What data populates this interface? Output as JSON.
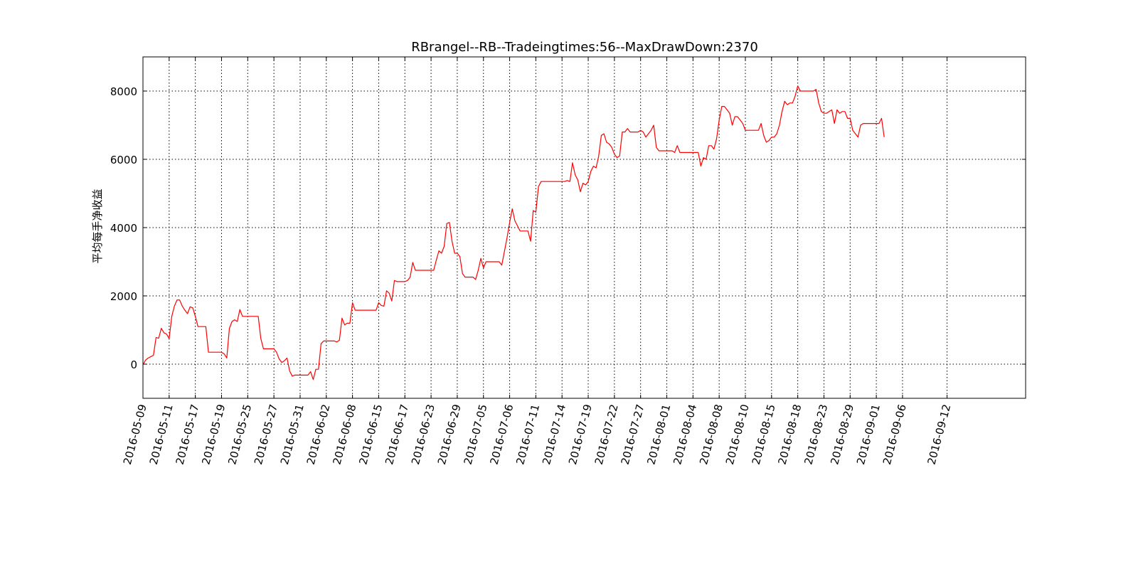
{
  "chart_data": {
    "type": "line",
    "title": "RBrangel--RB--Tradeingtimes:56--MaxDrawDown:2370",
    "xlabel": "",
    "ylabel": "平均每手净收益",
    "ylim": [
      -1000,
      9000
    ],
    "yticks": [
      0,
      2000,
      4000,
      6000,
      8000
    ],
    "grid": true,
    "line_color": "#ff0000",
    "xtick_labels": [
      "2016-05-09",
      "2016-05-11",
      "2016-05-17",
      "2016-05-19",
      "2016-05-25",
      "2016-05-27",
      "2016-05-31",
      "2016-06-02",
      "2016-06-08",
      "2016-06-15",
      "2016-06-17",
      "2016-06-23",
      "2016-06-29",
      "2016-07-05",
      "2016-07-06",
      "2016-07-11",
      "2016-07-14",
      "2016-07-19",
      "2016-07-22",
      "2016-07-27",
      "2016-08-01",
      "2016-08-04",
      "2016-08-08",
      "2016-08-10",
      "2016-08-15",
      "2016-08-18",
      "2016-08-23",
      "2016-08-29",
      "2016-09-01",
      "2016-09-06",
      "2016-09-12"
    ],
    "xtick_positions": [
      0,
      10,
      20,
      30,
      40,
      50,
      60,
      70,
      80,
      90,
      100,
      110,
      120,
      130,
      140,
      150,
      160,
      170,
      180,
      190,
      200,
      210,
      220,
      230,
      240,
      250,
      260,
      270,
      280,
      290,
      307
    ],
    "xlim": [
      0,
      337
    ],
    "series": [
      {
        "values": [
          [
            0,
            -20
          ],
          [
            1,
            120
          ],
          [
            2,
            180
          ],
          [
            3,
            220
          ],
          [
            4,
            260
          ],
          [
            5,
            780
          ],
          [
            6,
            760
          ],
          [
            7,
            1050
          ],
          [
            8,
            920
          ],
          [
            9,
            880
          ],
          [
            10,
            750
          ],
          [
            11,
            1400
          ],
          [
            12,
            1700
          ],
          [
            13,
            1880
          ],
          [
            14,
            1880
          ],
          [
            15,
            1700
          ],
          [
            16,
            1580
          ],
          [
            17,
            1480
          ],
          [
            18,
            1680
          ],
          [
            19,
            1650
          ],
          [
            20,
            1400
          ],
          [
            21,
            1100
          ],
          [
            22,
            1100
          ],
          [
            23,
            1100
          ],
          [
            24,
            1100
          ],
          [
            25,
            350
          ],
          [
            26,
            350
          ],
          [
            27,
            350
          ],
          [
            28,
            350
          ],
          [
            29,
            350
          ],
          [
            30,
            350
          ],
          [
            31,
            300
          ],
          [
            32,
            180
          ],
          [
            33,
            1050
          ],
          [
            34,
            1250
          ],
          [
            35,
            1300
          ],
          [
            36,
            1250
          ],
          [
            37,
            1600
          ],
          [
            38,
            1400
          ],
          [
            39,
            1400
          ],
          [
            40,
            1400
          ],
          [
            41,
            1400
          ],
          [
            42,
            1400
          ],
          [
            43,
            1400
          ],
          [
            44,
            1400
          ],
          [
            45,
            750
          ],
          [
            46,
            450
          ],
          [
            47,
            450
          ],
          [
            48,
            450
          ],
          [
            49,
            450
          ],
          [
            50,
            450
          ],
          [
            51,
            350
          ],
          [
            52,
            150
          ],
          [
            53,
            50
          ],
          [
            54,
            100
          ],
          [
            55,
            180
          ],
          [
            56,
            -200
          ],
          [
            57,
            -350
          ],
          [
            58,
            -320
          ],
          [
            59,
            -320
          ],
          [
            60,
            -320
          ],
          [
            61,
            -320
          ],
          [
            62,
            -320
          ],
          [
            63,
            -320
          ],
          [
            64,
            -220
          ],
          [
            65,
            -450
          ],
          [
            66,
            -150
          ],
          [
            67,
            -150
          ],
          [
            68,
            600
          ],
          [
            69,
            680
          ],
          [
            70,
            680
          ],
          [
            71,
            680
          ],
          [
            72,
            680
          ],
          [
            73,
            680
          ],
          [
            74,
            650
          ],
          [
            75,
            700
          ],
          [
            76,
            1350
          ],
          [
            77,
            1150
          ],
          [
            78,
            1200
          ],
          [
            79,
            1200
          ],
          [
            80,
            1800
          ],
          [
            81,
            1580
          ],
          [
            82,
            1580
          ],
          [
            83,
            1580
          ],
          [
            84,
            1580
          ],
          [
            85,
            1580
          ],
          [
            86,
            1580
          ],
          [
            87,
            1580
          ],
          [
            88,
            1580
          ],
          [
            89,
            1580
          ],
          [
            90,
            1800
          ],
          [
            91,
            1720
          ],
          [
            92,
            1700
          ],
          [
            93,
            2150
          ],
          [
            94,
            2080
          ],
          [
            95,
            1850
          ],
          [
            96,
            2450
          ],
          [
            97,
            2420
          ],
          [
            98,
            2420
          ],
          [
            99,
            2420
          ],
          [
            100,
            2420
          ],
          [
            101,
            2450
          ],
          [
            102,
            2550
          ],
          [
            103,
            2980
          ],
          [
            104,
            2750
          ],
          [
            105,
            2750
          ],
          [
            106,
            2750
          ],
          [
            107,
            2750
          ],
          [
            108,
            2750
          ],
          [
            109,
            2750
          ],
          [
            110,
            2750
          ],
          [
            111,
            2750
          ],
          [
            112,
            3050
          ],
          [
            113,
            3320
          ],
          [
            114,
            3250
          ],
          [
            115,
            3450
          ],
          [
            116,
            4120
          ],
          [
            117,
            4150
          ],
          [
            118,
            3600
          ],
          [
            119,
            3250
          ],
          [
            120,
            3250
          ],
          [
            121,
            3150
          ],
          [
            122,
            2650
          ],
          [
            123,
            2550
          ],
          [
            124,
            2550
          ],
          [
            125,
            2550
          ],
          [
            126,
            2550
          ],
          [
            127,
            2480
          ],
          [
            128,
            2750
          ],
          [
            129,
            3100
          ],
          [
            130,
            2820
          ],
          [
            131,
            3000
          ],
          [
            132,
            3000
          ],
          [
            133,
            3000
          ],
          [
            134,
            3000
          ],
          [
            135,
            3000
          ],
          [
            136,
            3000
          ],
          [
            137,
            2900
          ],
          [
            138,
            3300
          ],
          [
            139,
            3700
          ],
          [
            140,
            4150
          ],
          [
            141,
            4550
          ],
          [
            142,
            4200
          ],
          [
            143,
            4050
          ],
          [
            144,
            3900
          ],
          [
            145,
            3900
          ],
          [
            146,
            3900
          ],
          [
            147,
            3900
          ],
          [
            148,
            3600
          ],
          [
            149,
            4500
          ],
          [
            150,
            4450
          ],
          [
            151,
            5200
          ],
          [
            152,
            5350
          ],
          [
            153,
            5350
          ],
          [
            154,
            5350
          ],
          [
            155,
            5350
          ],
          [
            156,
            5350
          ],
          [
            157,
            5350
          ],
          [
            158,
            5350
          ],
          [
            159,
            5350
          ],
          [
            160,
            5350
          ],
          [
            161,
            5350
          ],
          [
            162,
            5380
          ],
          [
            163,
            5350
          ],
          [
            164,
            5900
          ],
          [
            165,
            5550
          ],
          [
            166,
            5400
          ],
          [
            167,
            5050
          ],
          [
            168,
            5300
          ],
          [
            169,
            5250
          ],
          [
            170,
            5350
          ],
          [
            171,
            5650
          ],
          [
            172,
            5800
          ],
          [
            173,
            5750
          ],
          [
            174,
            6100
          ],
          [
            175,
            6700
          ],
          [
            176,
            6750
          ],
          [
            177,
            6500
          ],
          [
            178,
            6450
          ],
          [
            179,
            6350
          ],
          [
            180,
            6150
          ],
          [
            181,
            6050
          ],
          [
            182,
            6100
          ],
          [
            183,
            6800
          ],
          [
            184,
            6800
          ],
          [
            185,
            6900
          ],
          [
            186,
            6800
          ],
          [
            187,
            6800
          ],
          [
            188,
            6800
          ],
          [
            189,
            6800
          ],
          [
            190,
            6850
          ],
          [
            191,
            6800
          ],
          [
            192,
            6650
          ],
          [
            193,
            6750
          ],
          [
            194,
            6850
          ],
          [
            195,
            7000
          ],
          [
            196,
            6350
          ],
          [
            197,
            6250
          ],
          [
            198,
            6250
          ],
          [
            199,
            6250
          ],
          [
            200,
            6250
          ],
          [
            201,
            6250
          ],
          [
            202,
            6250
          ],
          [
            203,
            6200
          ],
          [
            204,
            6400
          ],
          [
            205,
            6200
          ],
          [
            206,
            6200
          ],
          [
            207,
            6200
          ],
          [
            208,
            6200
          ],
          [
            209,
            6200
          ],
          [
            210,
            6200
          ],
          [
            211,
            6200
          ],
          [
            212,
            6200
          ],
          [
            213,
            5800
          ],
          [
            214,
            6050
          ],
          [
            215,
            6000
          ],
          [
            216,
            6400
          ],
          [
            217,
            6400
          ],
          [
            218,
            6300
          ],
          [
            219,
            6600
          ],
          [
            220,
            7150
          ],
          [
            221,
            7550
          ],
          [
            222,
            7550
          ],
          [
            223,
            7450
          ],
          [
            224,
            7350
          ],
          [
            225,
            7000
          ],
          [
            226,
            7250
          ],
          [
            227,
            7250
          ],
          [
            228,
            7150
          ],
          [
            229,
            7050
          ],
          [
            230,
            6850
          ],
          [
            231,
            6850
          ],
          [
            232,
            6850
          ],
          [
            233,
            6850
          ],
          [
            234,
            6850
          ],
          [
            235,
            6850
          ],
          [
            236,
            7050
          ],
          [
            237,
            6700
          ],
          [
            238,
            6500
          ],
          [
            239,
            6550
          ],
          [
            240,
            6650
          ],
          [
            241,
            6650
          ],
          [
            242,
            6750
          ],
          [
            243,
            7000
          ],
          [
            244,
            7400
          ],
          [
            245,
            7700
          ],
          [
            246,
            7600
          ],
          [
            247,
            7650
          ],
          [
            248,
            7650
          ],
          [
            249,
            7850
          ],
          [
            250,
            8150
          ],
          [
            251,
            8000
          ],
          [
            252,
            8000
          ],
          [
            253,
            8000
          ],
          [
            254,
            8000
          ],
          [
            255,
            8000
          ],
          [
            256,
            8000
          ],
          [
            257,
            8050
          ],
          [
            258,
            7650
          ],
          [
            259,
            7400
          ],
          [
            260,
            7350
          ],
          [
            261,
            7350
          ],
          [
            262,
            7400
          ],
          [
            263,
            7450
          ],
          [
            264,
            7050
          ],
          [
            265,
            7450
          ],
          [
            266,
            7350
          ],
          [
            267,
            7400
          ],
          [
            268,
            7400
          ],
          [
            269,
            7200
          ],
          [
            270,
            7200
          ],
          [
            271,
            6850
          ],
          [
            272,
            6750
          ],
          [
            273,
            6650
          ],
          [
            274,
            7000
          ],
          [
            275,
            7050
          ],
          [
            276,
            7050
          ],
          [
            277,
            7050
          ],
          [
            278,
            7050
          ],
          [
            279,
            7050
          ],
          [
            280,
            7050
          ],
          [
            281,
            7050
          ],
          [
            282,
            7200
          ],
          [
            283,
            6650
          ]
        ]
      }
    ]
  }
}
